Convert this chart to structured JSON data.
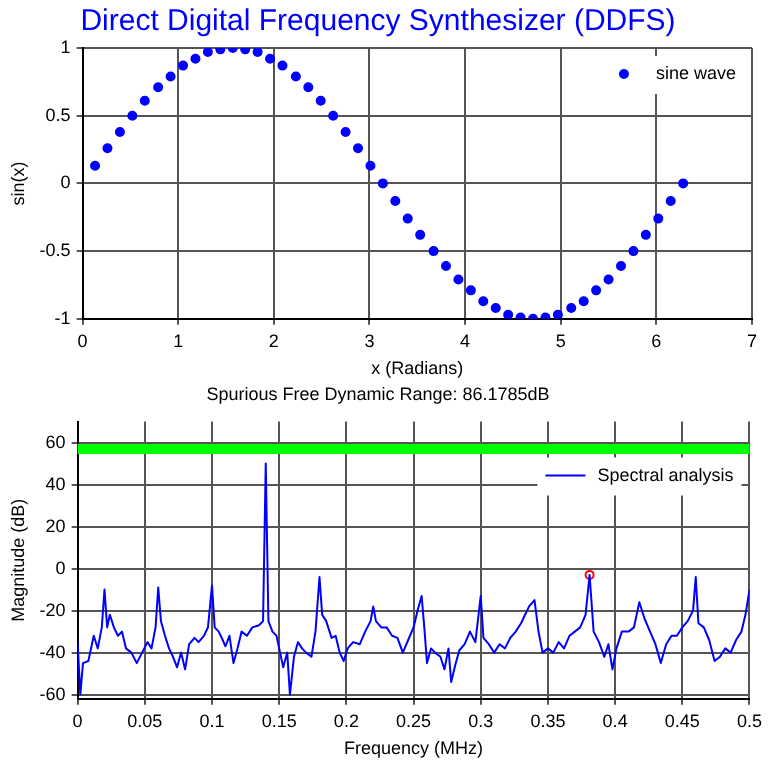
{
  "chart_data": [
    {
      "type": "scatter",
      "title": "Direct Digital Frequency Synthesizer (DDFS)",
      "xlabel": "x (Radians)",
      "ylabel": "sin(x)",
      "xlim": [
        0,
        7
      ],
      "xticks": [
        0,
        1,
        2,
        3,
        4,
        5,
        6,
        7
      ],
      "ylim": [
        -1,
        1
      ],
      "yticks": [
        -1,
        -0.5,
        0,
        0.5,
        1
      ],
      "grid": true,
      "legend": "top right",
      "marker": "circle",
      "x": [
        0.13,
        0.26,
        0.39,
        0.52,
        0.65,
        0.79,
        0.92,
        1.05,
        1.18,
        1.31,
        1.44,
        1.57,
        1.7,
        1.83,
        1.96,
        2.09,
        2.23,
        2.36,
        2.49,
        2.62,
        2.75,
        2.88,
        3.01,
        3.14,
        3.27,
        3.4,
        3.53,
        3.67,
        3.8,
        3.93,
        4.06,
        4.19,
        4.32,
        4.45,
        4.58,
        4.71,
        4.84,
        4.97,
        5.11,
        5.24,
        5.37,
        5.5,
        5.63,
        5.76,
        5.89,
        6.02,
        6.15,
        6.28
      ],
      "series": [
        {
          "name": "sine wave",
          "color": "#0000ff",
          "values": [
            0.13,
            0.26,
            0.38,
            0.5,
            0.61,
            0.71,
            0.79,
            0.87,
            0.92,
            0.97,
            0.99,
            1,
            0.99,
            0.97,
            0.92,
            0.87,
            0.79,
            0.71,
            0.61,
            0.5,
            0.38,
            0.26,
            0.13,
            0,
            -0.13,
            -0.26,
            -0.38,
            -0.5,
            -0.61,
            -0.71,
            -0.79,
            -0.87,
            -0.92,
            -0.97,
            -0.99,
            -1,
            -0.99,
            -0.97,
            -0.92,
            -0.87,
            -0.79,
            -0.71,
            -0.61,
            -0.5,
            -0.38,
            -0.26,
            -0.13,
            0
          ]
        }
      ]
    },
    {
      "type": "line",
      "title": "Spurious Free Dynamic Range: 86.1785dB",
      "xlabel": "Frequency (MHz)",
      "ylabel": "Magnitude (dB)",
      "xlim": [
        0,
        0.5
      ],
      "xticks": [
        0,
        0.05,
        0.1,
        0.15,
        0.2,
        0.25,
        0.3,
        0.35,
        0.4,
        0.45,
        0.5
      ],
      "ylim": [
        -62,
        70
      ],
      "yticks": [
        -60,
        -40,
        -20,
        0,
        20,
        40,
        60
      ],
      "grid": true,
      "legend": "top right",
      "ref_lines": [
        {
          "axis": "y",
          "value": 57,
          "color": "#00ff00"
        }
      ],
      "series": [
        {
          "name": "Spectral analysis",
          "type": "line",
          "marker": "none",
          "color": "#0000ff",
          "x": [
            0,
            0.002,
            0.004,
            0.008,
            0.012,
            0.015,
            0.018,
            0.02,
            0.022,
            0.024,
            0.027,
            0.03,
            0.033,
            0.036,
            0.04,
            0.044,
            0.048,
            0.052,
            0.055,
            0.058,
            0.06,
            0.062,
            0.065,
            0.068,
            0.071,
            0.074,
            0.077,
            0.08,
            0.083,
            0.087,
            0.09,
            0.094,
            0.097,
            0.1,
            0.102,
            0.105,
            0.108,
            0.11,
            0.113,
            0.116,
            0.119,
            0.122,
            0.126,
            0.13,
            0.135,
            0.138,
            0.14,
            0.142,
            0.145,
            0.148,
            0.15,
            0.153,
            0.156,
            0.158,
            0.161,
            0.164,
            0.167,
            0.17,
            0.174,
            0.177,
            0.18,
            0.182,
            0.185,
            0.189,
            0.192,
            0.195,
            0.198,
            0.201,
            0.205,
            0.21,
            0.214,
            0.218,
            0.22,
            0.222,
            0.226,
            0.23,
            0.234,
            0.238,
            0.242,
            0.246,
            0.25,
            0.253,
            0.256,
            0.258,
            0.26,
            0.263,
            0.266,
            0.27,
            0.273,
            0.276,
            0.278,
            0.281,
            0.284,
            0.288,
            0.292,
            0.296,
            0.3,
            0.302,
            0.306,
            0.31,
            0.314,
            0.318,
            0.322,
            0.326,
            0.33,
            0.333,
            0.336,
            0.34,
            0.343,
            0.346,
            0.35,
            0.354,
            0.358,
            0.362,
            0.366,
            0.37,
            0.374,
            0.378,
            0.381,
            0.384,
            0.388,
            0.392,
            0.395,
            0.398,
            0.401,
            0.405,
            0.41,
            0.414,
            0.418,
            0.422,
            0.426,
            0.43,
            0.434,
            0.438,
            0.442,
            0.446,
            0.45,
            0.454,
            0.458,
            0.46,
            0.462,
            0.466,
            0.47,
            0.474,
            0.478,
            0.482,
            0.486,
            0.49,
            0.494,
            0.497,
            0.5
          ],
          "values": [
            -35,
            -60,
            -45,
            -44,
            -32,
            -38,
            -28,
            -10,
            -28,
            -22,
            -28,
            -32,
            -30,
            -38,
            -40,
            -45,
            -40,
            -35,
            -38,
            -28,
            -9,
            -25,
            -32,
            -38,
            -42,
            -47,
            -40,
            -48,
            -36,
            -33,
            -35,
            -32,
            -28,
            -8,
            -28,
            -30,
            -34,
            -37,
            -32,
            -45,
            -38,
            -30,
            -32,
            -28,
            -27,
            -25,
            50,
            -25,
            -30,
            -32,
            -38,
            -47,
            -40,
            -60,
            -42,
            -35,
            -38,
            -40,
            -42,
            -30,
            -4,
            -22,
            -25,
            -33,
            -32,
            -40,
            -44,
            -38,
            -35,
            -36,
            -30,
            -25,
            -18,
            -25,
            -28,
            -28,
            -32,
            -33,
            -40,
            -34,
            -28,
            -20,
            -13,
            -28,
            -45,
            -38,
            -40,
            -42,
            -48,
            -38,
            -54,
            -46,
            -39,
            -36,
            -30,
            -35,
            -13,
            -33,
            -36,
            -40,
            -36,
            -38,
            -33,
            -30,
            -26,
            -22,
            -18,
            -15,
            -30,
            -40,
            -38,
            -40,
            -35,
            -38,
            -32,
            -30,
            -28,
            -22,
            -3,
            -30,
            -35,
            -42,
            -36,
            -48,
            -38,
            -30,
            -30,
            -28,
            -16,
            -24,
            -30,
            -36,
            -45,
            -36,
            -32,
            -32,
            -28,
            -25,
            -20,
            -4,
            -26,
            -28,
            -34,
            -44,
            -42,
            -38,
            -40,
            -34,
            -30,
            -22,
            -10
          ]
        },
        {
          "type": "scatter",
          "marker": "circle",
          "color": "#ff0000",
          "x": [
            0.381
          ],
          "values": [
            -3
          ]
        }
      ]
    }
  ]
}
